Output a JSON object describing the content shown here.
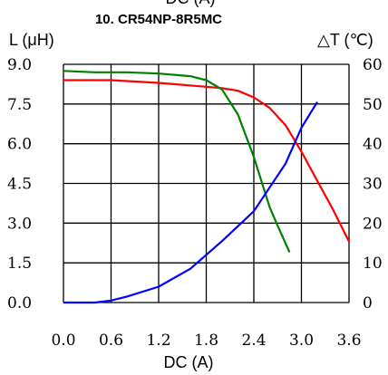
{
  "chart_data": {
    "type": "line",
    "title": "10. CR54NP-8R5MC",
    "top_cut_label": "DC (A)",
    "xlabel": "DC (A)",
    "ylabel_left": "L (μH)",
    "ylabel_right": "△T (℃)",
    "x_ticks": [
      "0.0",
      "0.6",
      "1.2",
      "1.8",
      "2.4",
      "3.0",
      "3.6"
    ],
    "y_left_ticks": [
      "0.0",
      "1.5",
      "3.0",
      "4.5",
      "6.0",
      "7.5",
      "9.0"
    ],
    "y_right_ticks": [
      "0",
      "10",
      "20",
      "30",
      "40",
      "50",
      "60"
    ],
    "xlim": [
      0,
      3.6
    ],
    "ylim_left": [
      0,
      9
    ],
    "ylim_right": [
      0,
      60
    ],
    "grid": true,
    "series": [
      {
        "axis": "left",
        "color": "#ff0000",
        "x": [
          0,
          0.6,
          1.2,
          1.8,
          2.0,
          2.2,
          2.4,
          2.6,
          2.8,
          3.0,
          3.2,
          3.4,
          3.6
        ],
        "y": [
          8.4,
          8.4,
          8.3,
          8.15,
          8.1,
          8.0,
          7.75,
          7.35,
          6.7,
          5.7,
          4.6,
          3.5,
          2.3
        ]
      },
      {
        "axis": "left",
        "color": "#008000",
        "x": [
          0,
          0.4,
          0.8,
          1.2,
          1.6,
          1.8,
          2.0,
          2.2,
          2.4,
          2.6,
          2.7,
          2.85
        ],
        "y": [
          8.75,
          8.7,
          8.7,
          8.65,
          8.55,
          8.4,
          8.05,
          7.1,
          5.5,
          3.6,
          2.9,
          1.9
        ]
      },
      {
        "axis": "right",
        "color": "#0000ff",
        "x": [
          0,
          0.4,
          0.6,
          0.8,
          1.2,
          1.6,
          2.0,
          2.4,
          2.8,
          3.0,
          3.2
        ],
        "y": [
          0,
          0,
          0.5,
          1.5,
          4,
          8.5,
          15.5,
          23,
          35,
          44,
          50.5
        ]
      }
    ]
  }
}
